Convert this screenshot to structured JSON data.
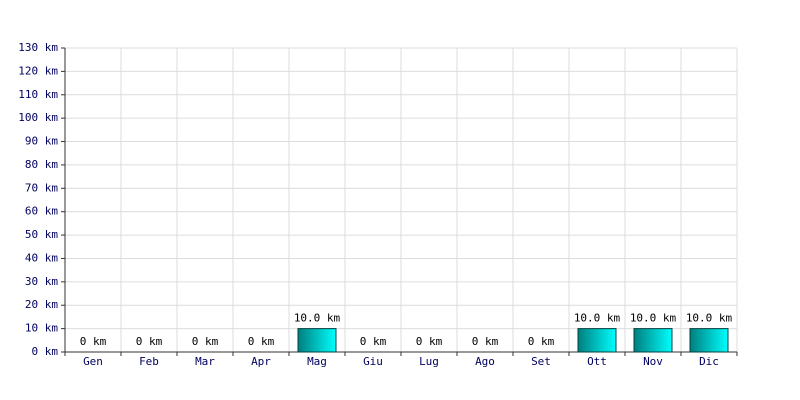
{
  "chart_data": {
    "type": "bar",
    "categories": [
      "Gen",
      "Feb",
      "Mar",
      "Apr",
      "Mag",
      "Giu",
      "Lug",
      "Ago",
      "Set",
      "Ott",
      "Nov",
      "Dic"
    ],
    "values": [
      0,
      0,
      0,
      0,
      10,
      0,
      0,
      0,
      0,
      10,
      10,
      10
    ],
    "value_labels": [
      "0 km",
      "0 km",
      "0 km",
      "0 km",
      "10.0 km",
      "0 km",
      "0 km",
      "0 km",
      "0 km",
      "10.0 km",
      "10.0 km",
      "10.0 km"
    ],
    "color": "#00ffff",
    "ylim": [
      0,
      130
    ],
    "yticks": [
      {
        "value": 0,
        "label": "0 km"
      },
      {
        "value": 10,
        "label": "10 km"
      },
      {
        "value": 20,
        "label": "20 km"
      },
      {
        "value": 30,
        "label": "30 km"
      },
      {
        "value": 40,
        "label": "40 km"
      },
      {
        "value": 50,
        "label": "50 km"
      },
      {
        "value": 60,
        "label": "60 km"
      },
      {
        "value": 70,
        "label": "70 km"
      },
      {
        "value": 80,
        "label": "80 km"
      },
      {
        "value": 90,
        "label": "90 km"
      },
      {
        "value": 100,
        "label": "100 km"
      },
      {
        "value": 110,
        "label": "110 km"
      },
      {
        "value": 120,
        "label": "120 km"
      },
      {
        "value": 130,
        "label": "130 km"
      }
    ],
    "grid": true
  }
}
